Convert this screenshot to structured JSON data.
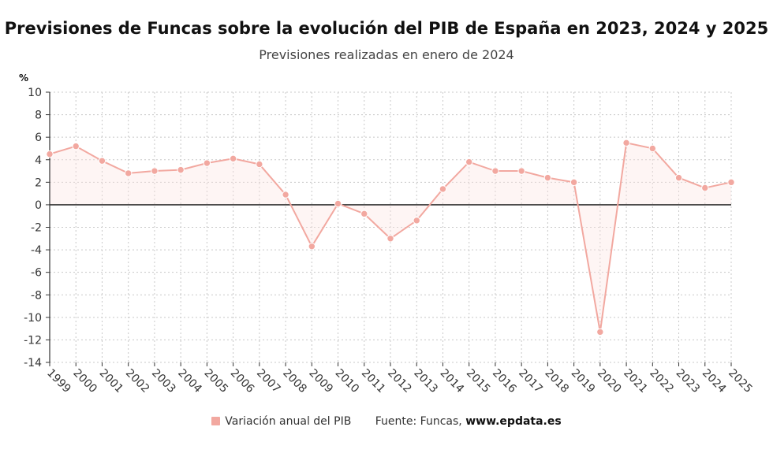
{
  "title": "Previsiones de Funcas sobre la evolución del PIB de España en 2023, 2024 y 2025",
  "subtitle": "Previsiones realizadas en enero de 2024",
  "legend": {
    "series_label": "Variación anual del PIB",
    "source_prefix": "Fuente: Funcas,",
    "source_site": "www.epdata.es"
  },
  "colors": {
    "series": "#f2a8a0",
    "fill": "#fbe3e0",
    "zero_line": "#333333",
    "grid": "#c8c8c8"
  },
  "chart_data": {
    "type": "line",
    "ylabel": "%",
    "xlabel": "",
    "ylim": [
      -14,
      10
    ],
    "yticks": [
      10,
      8,
      6,
      4,
      2,
      0,
      -2,
      -4,
      -6,
      -8,
      -10,
      -12,
      -14
    ],
    "grid": true,
    "legend_position": "bottom",
    "x": [
      "1999",
      "2000",
      "2001",
      "2002",
      "2003",
      "2004",
      "2005",
      "2006",
      "2007",
      "2008",
      "2009",
      "2010",
      "2011",
      "2012",
      "2013",
      "2014",
      "2015",
      "2016",
      "2017",
      "2018",
      "2019",
      "2020",
      "2021",
      "2022",
      "2023",
      "2024",
      "2025"
    ],
    "series": [
      {
        "name": "Variación anual del PIB",
        "values": [
          4.5,
          5.2,
          3.9,
          2.8,
          3.0,
          3.1,
          3.7,
          4.1,
          3.6,
          0.9,
          -3.7,
          0.1,
          -0.8,
          -3.0,
          -1.4,
          1.4,
          3.8,
          3.0,
          3.0,
          2.4,
          2.0,
          -11.3,
          5.5,
          5.0,
          2.4,
          1.5,
          2.0
        ]
      }
    ]
  }
}
